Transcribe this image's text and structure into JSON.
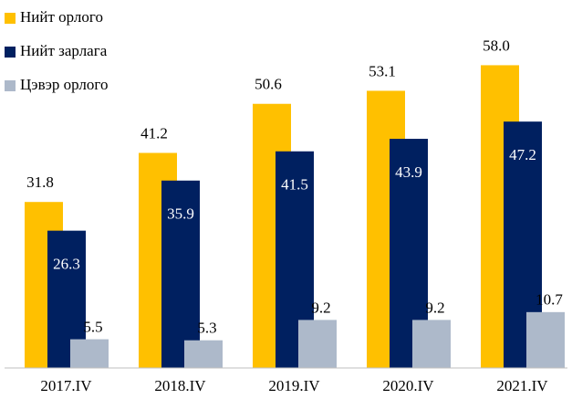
{
  "chart_data": {
    "type": "bar",
    "categories": [
      "2017.IV",
      "2018.IV",
      "2019.IV",
      "2020.IV",
      "2021.IV"
    ],
    "series": [
      {
        "name": "Нийт орлого",
        "color": "#FFC000",
        "values": [
          31.8,
          41.2,
          50.6,
          53.1,
          58.0
        ],
        "value_labels": [
          "31.8",
          "41.2",
          "50.6",
          "53.1",
          "58.0"
        ]
      },
      {
        "name": "Нийт зарлага",
        "color": "#002060",
        "values": [
          26.3,
          35.9,
          41.5,
          43.9,
          47.2
        ]
      },
      {
        "name": "Цэвэр орлого",
        "color": "#ADB9CA",
        "values": [
          5.5,
          5.3,
          9.2,
          9.2,
          10.7
        ]
      }
    ],
    "ylim": [
      0,
      60
    ]
  }
}
